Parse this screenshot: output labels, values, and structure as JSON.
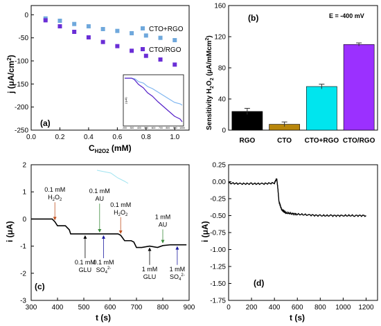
{
  "chart_data": [
    {
      "panel": "(a)",
      "type": "scatter",
      "xlabel": "C",
      "xlabel_sub": "H2O2",
      "xlabel_unit": " (mM)",
      "ylabel": "j (μA/cm",
      "ylabel_sup": "2",
      "ylabel_end": ")",
      "xlim": [
        0,
        1.1
      ],
      "ylim": [
        -250,
        20
      ],
      "xticks": [
        0.0,
        0.2,
        0.4,
        0.6,
        0.8,
        1.0
      ],
      "xticklabels": [
        "0.0",
        "0.2",
        "0.4",
        "0.6",
        "0.8",
        "1.0"
      ],
      "yticks": [
        0,
        -50,
        -100,
        -150,
        -200,
        -250
      ],
      "yticklabels": [
        "0",
        "-50",
        "-100",
        "-150",
        "-200",
        "-250"
      ],
      "series": [
        {
          "name": "CTO+RGO",
          "color": "#6fa8dc",
          "marker": "square",
          "x": [
            0.1,
            0.2,
            0.3,
            0.4,
            0.5,
            0.6,
            0.7,
            0.8,
            0.9,
            1.0
          ],
          "y": [
            -8,
            -13,
            -20,
            -25,
            -31,
            -35,
            -40,
            -45,
            -50,
            -55
          ]
        },
        {
          "name": "CTO/RGO",
          "color": "#6a2ed6",
          "marker": "square",
          "x": [
            0.1,
            0.2,
            0.3,
            0.4,
            0.5,
            0.6,
            0.7,
            0.8,
            0.9,
            1.0
          ],
          "y": [
            -12,
            -25,
            -37,
            -49,
            -59,
            -68,
            -78,
            -89,
            -97,
            -108
          ]
        }
      ],
      "inset": {
        "xticklabels": [
          "200",
          "300",
          "400",
          "500",
          "600",
          "700",
          "800",
          "900",
          "1000"
        ],
        "ylabel": "j (μA)"
      }
    },
    {
      "panel": "(b)",
      "type": "bar",
      "annotation": "E = -400 mV",
      "ylabel": "Sensitivity H",
      "ylabel_rest": "O",
      "ylabel_unit": " (μA/mMcm",
      "ylabel_sup": "2",
      "ylabel_end": ")",
      "categories": [
        "RGO",
        "CTO",
        "CTO+RGO",
        "CTO/RGO"
      ],
      "values": [
        24,
        7.5,
        56,
        110
      ],
      "errors": [
        4,
        3,
        3,
        2
      ],
      "colors": [
        "#000000",
        "#b8860b",
        "#00e5ee",
        "#9b30ff"
      ],
      "ylim": [
        0,
        160
      ],
      "yticks": [
        0,
        40,
        80,
        120,
        160
      ],
      "yticklabels": [
        "0",
        "40",
        "80",
        "120",
        "160"
      ]
    },
    {
      "panel": "(c)",
      "type": "line",
      "xlabel": "t (s)",
      "ylabel": "i (μA)",
      "xlim": [
        300,
        900
      ],
      "ylim": [
        -3,
        2
      ],
      "xticks": [
        300,
        400,
        500,
        600,
        700,
        800,
        900
      ],
      "xticklabels": [
        "300",
        "400",
        "500",
        "600",
        "700",
        "800",
        "900"
      ],
      "yticks": [
        2,
        1,
        0,
        -1,
        -2,
        -3
      ],
      "yticklabels": [
        "2",
        "1",
        "0",
        "-1",
        "-2",
        "-3"
      ],
      "x": [
        300,
        380,
        390,
        400,
        430,
        445,
        450,
        470,
        500,
        540,
        560,
        600,
        630,
        640,
        655,
        680,
        690,
        700,
        720,
        750,
        780,
        800,
        830,
        860,
        890
      ],
      "y": [
        0,
        0,
        -0.1,
        -0.25,
        -0.25,
        -0.4,
        -0.55,
        -0.55,
        -0.55,
        -0.55,
        -0.55,
        -0.55,
        -0.55,
        -0.6,
        -0.8,
        -0.8,
        -0.85,
        -1.05,
        -1.05,
        -1.0,
        -1.05,
        -0.98,
        -0.95,
        -0.95,
        -0.95
      ],
      "annotations": [
        {
          "line1": "0.1 mM",
          "line2": "H",
          "sub": "2",
          "line2b": "O",
          "sub2": "2",
          "color": "#c0501f",
          "x": 390,
          "y": 1.0,
          "arrow_y": -0.05,
          "side": "above"
        },
        {
          "line1": "0.1 mM",
          "line2": "AU",
          "color": "#3a8a3a",
          "x": 560,
          "y": 0.95,
          "arrow_y": -0.5,
          "side": "above"
        },
        {
          "line1": "0.1 mM",
          "line2": "H",
          "sub": "2",
          "line2b": "O",
          "sub2": "2",
          "color": "#c0501f",
          "x": 640,
          "y": 0.45,
          "arrow_y": -0.55,
          "side": "above"
        },
        {
          "line1": "1 mM",
          "line2": "AU",
          "color": "#3a8a3a",
          "x": 800,
          "y": 0.0,
          "arrow_y": -0.9,
          "side": "above"
        },
        {
          "line1": "0.1 mM",
          "line2": "GLU",
          "color": "#000000",
          "x": 505,
          "y": -1.75,
          "arrow_y": -0.6,
          "side": "below"
        },
        {
          "line1": "0.1 mM",
          "line2": "SO",
          "sub": "4",
          "sup": "2-",
          "color": "#1a1aa0",
          "x": 575,
          "y": -1.75,
          "arrow_y": -0.6,
          "side": "below"
        },
        {
          "line1": "1 mM",
          "line2": "GLU",
          "color": "#000000",
          "x": 750,
          "y": -2.0,
          "arrow_y": -1.05,
          "side": "below"
        },
        {
          "line1": "1 mM",
          "line2": "SO",
          "sub": "4",
          "sup": "2-",
          "color": "#1a1aa0",
          "x": 855,
          "y": -2.0,
          "arrow_y": -1.0,
          "side": "below"
        }
      ]
    },
    {
      "panel": "(d)",
      "type": "line",
      "xlabel": "t (s)",
      "ylabel": "i (μA)",
      "xlim": [
        0,
        1300
      ],
      "ylim": [
        -1.75,
        0.25
      ],
      "xticks": [
        0,
        200,
        400,
        600,
        800,
        1000,
        1200
      ],
      "xticklabels": [
        "0",
        "200",
        "400",
        "600",
        "800",
        "1000",
        "1200"
      ],
      "yticks": [
        0.25,
        0.0,
        -0.25,
        -0.5,
        -0.75,
        -1.0,
        -1.25,
        -1.5,
        -1.75
      ],
      "yticklabels": [
        "0.25",
        "0.00",
        "-0.25",
        "-0.50",
        "-0.75",
        "-1.00",
        "-1.25",
        "-1.50",
        "-1.75"
      ],
      "x": [
        0,
        100,
        200,
        300,
        400,
        420,
        430,
        440,
        460,
        480,
        500,
        550,
        600,
        700,
        800,
        900,
        1000,
        1100,
        1200
      ],
      "y": [
        -0.02,
        -0.03,
        -0.03,
        -0.03,
        -0.02,
        0.05,
        -0.1,
        -0.3,
        -0.4,
        -0.44,
        -0.46,
        -0.47,
        -0.48,
        -0.49,
        -0.5,
        -0.5,
        -0.5,
        -0.5,
        -0.5
      ]
    }
  ]
}
